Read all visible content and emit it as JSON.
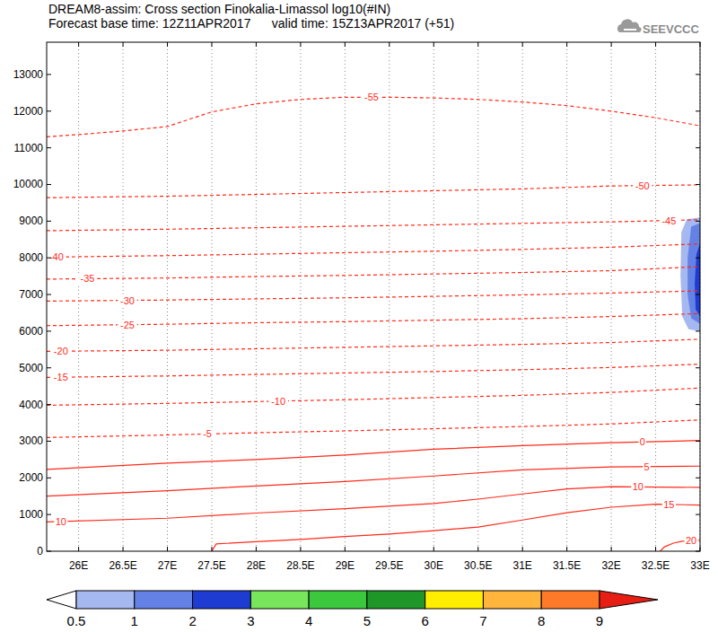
{
  "chart_data": {
    "type": "contour",
    "title": "DREAM8-assim: Cross section Finokalia-Limassol log10(#IN)",
    "subtitle": "Forecast base time: 12Z11APR2017      valid time: 15Z13APR2017 (+51)",
    "logo": "SEEVCCC",
    "color": "#ff2a1a",
    "grid": "x",
    "xlim": [
      25.64,
      33
    ],
    "ylim": [
      0,
      13880
    ],
    "xticks": [
      {
        "value": 26,
        "label": "26E"
      },
      {
        "value": 26.5,
        "label": "26.5E"
      },
      {
        "value": 27,
        "label": "27E"
      },
      {
        "value": 27.5,
        "label": "27.5E"
      },
      {
        "value": 28,
        "label": "28E"
      },
      {
        "value": 28.5,
        "label": "28.5E"
      },
      {
        "value": 29,
        "label": "29E"
      },
      {
        "value": 29.5,
        "label": "29.5E"
      },
      {
        "value": 30,
        "label": "30E"
      },
      {
        "value": 30.5,
        "label": "30.5E"
      },
      {
        "value": 31,
        "label": "31E"
      },
      {
        "value": 31.5,
        "label": "31.5E"
      },
      {
        "value": 32,
        "label": "32E"
      },
      {
        "value": 32.5,
        "label": "32.5E"
      },
      {
        "value": 33,
        "label": "33E"
      }
    ],
    "yticks": [
      0,
      1000,
      2000,
      3000,
      4000,
      5000,
      6000,
      7000,
      8000,
      9000,
      10000,
      11000,
      12000,
      13000
    ],
    "contours": [
      {
        "level": -55,
        "line_style": "dashed",
        "x": [
          25.64,
          26,
          26.5,
          27,
          27.5,
          28,
          28.5,
          29,
          29.5,
          30,
          30.5,
          31,
          31.5,
          32,
          32.5,
          33
        ],
        "y": [
          11300,
          11360,
          11460,
          11580,
          11980,
          12200,
          12320,
          12380,
          12380,
          12360,
          12320,
          12250,
          12150,
          12000,
          11820,
          11600
        ],
        "label_x": [
          29.3
        ]
      },
      {
        "level": -50,
        "line_style": "dashed",
        "x": [
          25.64,
          27,
          28,
          29,
          30,
          31,
          32,
          33
        ],
        "y": [
          9640,
          9680,
          9730,
          9780,
          9830,
          9880,
          9960,
          9990
        ],
        "label_x": [
          32.35
        ]
      },
      {
        "level": -45,
        "line_style": "dashed",
        "x": [
          25.64,
          27,
          28,
          29,
          30,
          31,
          32,
          33
        ],
        "y": [
          8740,
          8780,
          8820,
          8860,
          8900,
          8940,
          8980,
          9040
        ],
        "label_x": [
          32.65
        ]
      },
      {
        "level": -40,
        "line_style": "dashed",
        "x": [
          25.64,
          27,
          28,
          29,
          30,
          31,
          32,
          33
        ],
        "y": [
          8020,
          8060,
          8100,
          8140,
          8180,
          8230,
          8290,
          8380
        ],
        "label_x": [
          25.75
        ]
      },
      {
        "level": -35,
        "line_style": "dashed",
        "x": [
          25.64,
          27,
          28,
          29,
          30,
          31,
          32,
          33
        ],
        "y": [
          7420,
          7450,
          7490,
          7520,
          7560,
          7600,
          7650,
          7760
        ],
        "label_x": [
          26.1
        ]
      },
      {
        "level": -30,
        "line_style": "dashed",
        "x": [
          25.64,
          27,
          28,
          29,
          30,
          31,
          32,
          33
        ],
        "y": [
          6820,
          6850,
          6880,
          6910,
          6950,
          6990,
          7040,
          7100
        ],
        "label_x": [
          26.55
        ]
      },
      {
        "level": -25,
        "line_style": "dashed",
        "x": [
          25.64,
          27,
          28,
          29,
          30,
          31,
          32,
          33
        ],
        "y": [
          6150,
          6190,
          6230,
          6260,
          6300,
          6340,
          6400,
          6480
        ],
        "label_x": [
          26.55
        ]
      },
      {
        "level": -20,
        "line_style": "dashed",
        "x": [
          25.64,
          27,
          28,
          29,
          30,
          31,
          32,
          33
        ],
        "y": [
          5450,
          5480,
          5520,
          5560,
          5600,
          5640,
          5690,
          5780
        ],
        "label_x": [
          25.8
        ]
      },
      {
        "level": -15,
        "line_style": "dashed",
        "x": [
          25.64,
          27,
          28,
          29,
          30,
          31,
          32,
          33
        ],
        "y": [
          4740,
          4780,
          4820,
          4860,
          4900,
          4950,
          5010,
          5100
        ],
        "label_x": [
          25.8
        ]
      },
      {
        "level": -10,
        "line_style": "dashed",
        "x": [
          25.64,
          27,
          28,
          29,
          30,
          31,
          32,
          33
        ],
        "y": [
          3980,
          4030,
          4080,
          4130,
          4190,
          4250,
          4330,
          4450
        ],
        "label_x": [
          28.25
        ]
      },
      {
        "level": -5,
        "line_style": "dashed",
        "x": [
          25.64,
          27,
          28,
          29,
          30,
          31,
          32,
          33
        ],
        "y": [
          3100,
          3170,
          3230,
          3280,
          3340,
          3400,
          3470,
          3580
        ],
        "label_x": [
          27.45
        ]
      },
      {
        "level": 0,
        "line_style": "solid",
        "x": [
          25.64,
          27,
          28,
          29,
          30,
          31,
          32,
          33
        ],
        "y": [
          2230,
          2400,
          2500,
          2620,
          2780,
          2880,
          2960,
          3020
        ],
        "label_x": [
          32.35
        ]
      },
      {
        "level": 5,
        "line_style": "solid",
        "x": [
          25.64,
          27,
          28,
          29,
          30,
          31,
          32,
          33
        ],
        "y": [
          1500,
          1650,
          1780,
          1900,
          2050,
          2220,
          2300,
          2320
        ],
        "label_x": [
          32.4
        ]
      },
      {
        "level": 10,
        "line_style": "solid",
        "x": [
          25.64,
          27,
          28,
          29,
          30,
          30.5,
          31,
          31.5,
          32,
          33
        ],
        "y": [
          800,
          900,
          1040,
          1160,
          1300,
          1420,
          1560,
          1700,
          1760,
          1740
        ],
        "label_x": [
          25.8,
          32.3
        ]
      },
      {
        "level": 15,
        "line_style": "solid",
        "x": [
          27.5,
          27.55,
          28,
          28.5,
          29,
          29.5,
          30,
          30.5,
          31,
          31.5,
          32,
          32.5,
          33
        ],
        "y": [
          0,
          200,
          260,
          320,
          400,
          470,
          560,
          660,
          850,
          1050,
          1200,
          1280,
          1260
        ],
        "label_x": [
          32.65
        ]
      },
      {
        "level": 20,
        "line_style": "solid",
        "x": [
          32.55,
          32.6,
          32.7,
          32.8,
          33
        ],
        "y": [
          0,
          120,
          220,
          270,
          300
        ],
        "label_x": [
          32.9
        ]
      }
    ],
    "shaded": [
      {
        "level": 0.5,
        "x": [
          33,
          32.85,
          32.79,
          32.78,
          32.8,
          32.87,
          33
        ],
        "y": [
          9100,
          9050,
          8700,
          7500,
          6400,
          6050,
          6000
        ]
      },
      {
        "level": 1,
        "x": [
          33,
          32.9,
          32.86,
          32.86,
          32.9,
          33
        ],
        "y": [
          8950,
          8850,
          8000,
          7000,
          6350,
          6200
        ]
      },
      {
        "level": 2,
        "x": [
          33,
          32.96,
          32.94,
          32.95,
          33
        ],
        "y": [
          8400,
          8100,
          7300,
          6600,
          6400
        ]
      }
    ],
    "colorbar": {
      "ticks": [
        0.5,
        1,
        2,
        3,
        4,
        5,
        6,
        7,
        8,
        9
      ],
      "colors": [
        "#ffffff",
        "#a6b8f0",
        "#6482e6",
        "#1e3cd2",
        "#78e65a",
        "#3cc83c",
        "#1e9628",
        "#ffee00",
        "#ffb43c",
        "#ff7a28",
        "#e61e14"
      ]
    }
  }
}
